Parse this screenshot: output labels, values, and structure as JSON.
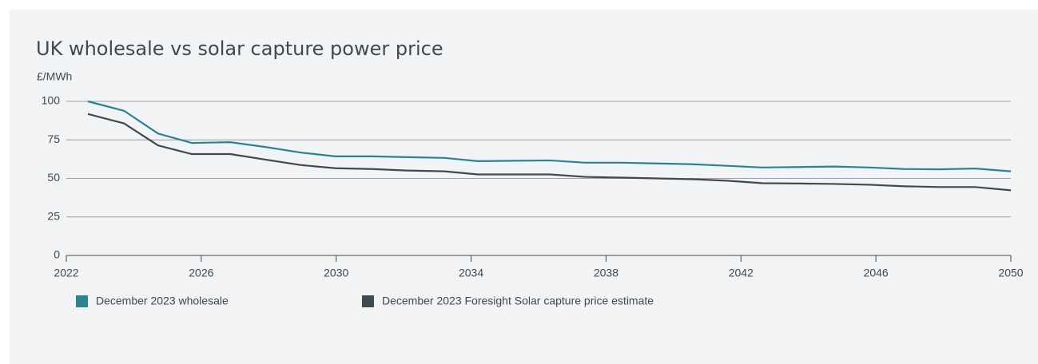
{
  "chart_data": {
    "type": "line",
    "title": "UK wholesale vs solar capture power price",
    "y_label": "£/MWh",
    "x": [
      2022.64,
      2023.71,
      2024.72,
      2025.72,
      2026.86,
      2027.9,
      2028.94,
      2029.98,
      2031.07,
      2032.12,
      2033.21,
      2034.2,
      2036.33,
      2037.38,
      2038.47,
      2039.51,
      2040.55,
      2041.59,
      2042.64,
      2043.72,
      2044.77,
      2045.81,
      2046.85,
      2047.89,
      2048.94,
      2050
    ],
    "series": [
      {
        "name": "December 2023 wholesale",
        "color": "#2a8490",
        "values": [
          100,
          93.9,
          79.1,
          73,
          73.5,
          70.4,
          66.8,
          64.3,
          64.3,
          63.8,
          63.3,
          61.2,
          61.7,
          60.2,
          60.2,
          59.7,
          59.2,
          58.2,
          57.1,
          57.4,
          57.7,
          57.1,
          56.1,
          55.9,
          56.4,
          54.6
        ]
      },
      {
        "name": "December 2023 Foresight Solar capture price estimate",
        "color": "#3d4a4f",
        "values": [
          91.8,
          85.7,
          71.4,
          65.8,
          65.8,
          62.2,
          58.7,
          56.6,
          56.1,
          55.1,
          54.6,
          52.6,
          52.6,
          51,
          50.5,
          50,
          49.5,
          48.5,
          46.9,
          46.7,
          46.4,
          45.9,
          44.9,
          44.4,
          44.4,
          42.3
        ]
      }
    ],
    "xlim": [
      2022,
      2050
    ],
    "xticks": [
      2022,
      2026,
      2030,
      2034,
      2038,
      2042,
      2046,
      2050
    ],
    "ylim": [
      0,
      100
    ],
    "yticks": [
      0,
      25,
      50,
      75,
      100
    ],
    "grid": true
  }
}
